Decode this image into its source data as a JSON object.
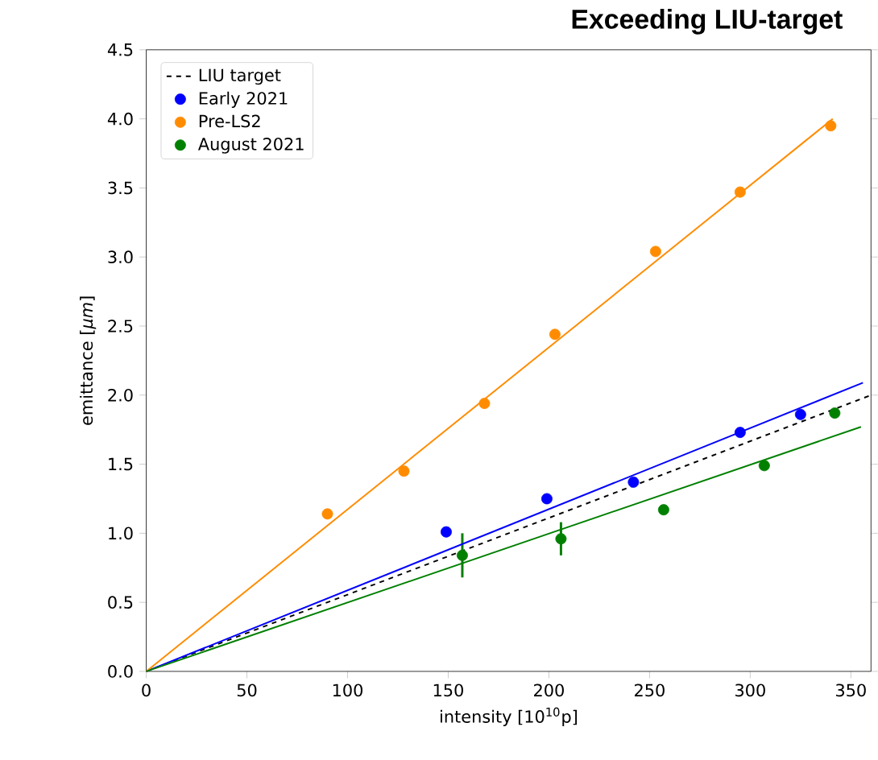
{
  "chart_data": {
    "type": "scatter",
    "title": "Exceeding LIU-target",
    "xlabel": "intensity [10$^{10}$p]",
    "ylabel": "emittance [*μm*]",
    "xlim": [
      0,
      360
    ],
    "ylim": [
      0,
      4.5
    ],
    "xticks": [
      0,
      50,
      100,
      150,
      200,
      250,
      300,
      350
    ],
    "yticks": [
      {
        "value": 0,
        "label": "0.0"
      },
      {
        "value": 0.5,
        "label": "0.5"
      },
      {
        "value": 1,
        "label": "1.0"
      },
      {
        "value": 1.5,
        "label": "1.5"
      },
      {
        "value": 2,
        "label": "2.0"
      },
      {
        "value": 2.5,
        "label": "2.5"
      },
      {
        "value": 3,
        "label": "3.0"
      },
      {
        "value": 3.5,
        "label": "3.5"
      },
      {
        "value": 4,
        "label": "4.0"
      },
      {
        "value": 4.5,
        "label": "4.5"
      }
    ],
    "legend": "top left",
    "marker": "circle",
    "series": [
      {
        "name": "LIU target",
        "type": "line",
        "marker": "none",
        "line_style": "dashed",
        "color": "#000000",
        "x": [
          0,
          360
        ],
        "values": [
          0,
          2.0
        ]
      },
      {
        "name": "Early 2021",
        "color": "#0000ff",
        "x": [
          149,
          199,
          242,
          295,
          325
        ],
        "values": [
          1.01,
          1.25,
          1.37,
          1.73,
          1.86
        ]
      },
      {
        "name": "Pre-LS2",
        "color": "#ff8c00",
        "x": [
          90,
          128,
          168,
          203,
          253,
          295,
          340
        ],
        "values": [
          1.14,
          1.45,
          1.94,
          2.44,
          3.04,
          3.47,
          3.95
        ]
      },
      {
        "name": "August 2021",
        "color": "#008000",
        "x": [
          157,
          206,
          257,
          307,
          342
        ],
        "values": [
          0.84,
          0.96,
          1.17,
          1.49,
          1.87
        ],
        "errors": [
          0.16,
          0.12,
          null,
          null,
          null
        ]
      },
      {
        "type": "line",
        "marker": "none",
        "color": "#0000ff",
        "x": [
          0,
          356
        ],
        "values": [
          0,
          2.09
        ]
      },
      {
        "type": "line",
        "marker": "none",
        "color": "#ff8c00",
        "x": [
          0,
          341
        ],
        "values": [
          0,
          4.0
        ]
      },
      {
        "type": "line",
        "marker": "none",
        "color": "#008000",
        "x": [
          0,
          355
        ],
        "values": [
          0,
          1.77
        ]
      }
    ]
  }
}
